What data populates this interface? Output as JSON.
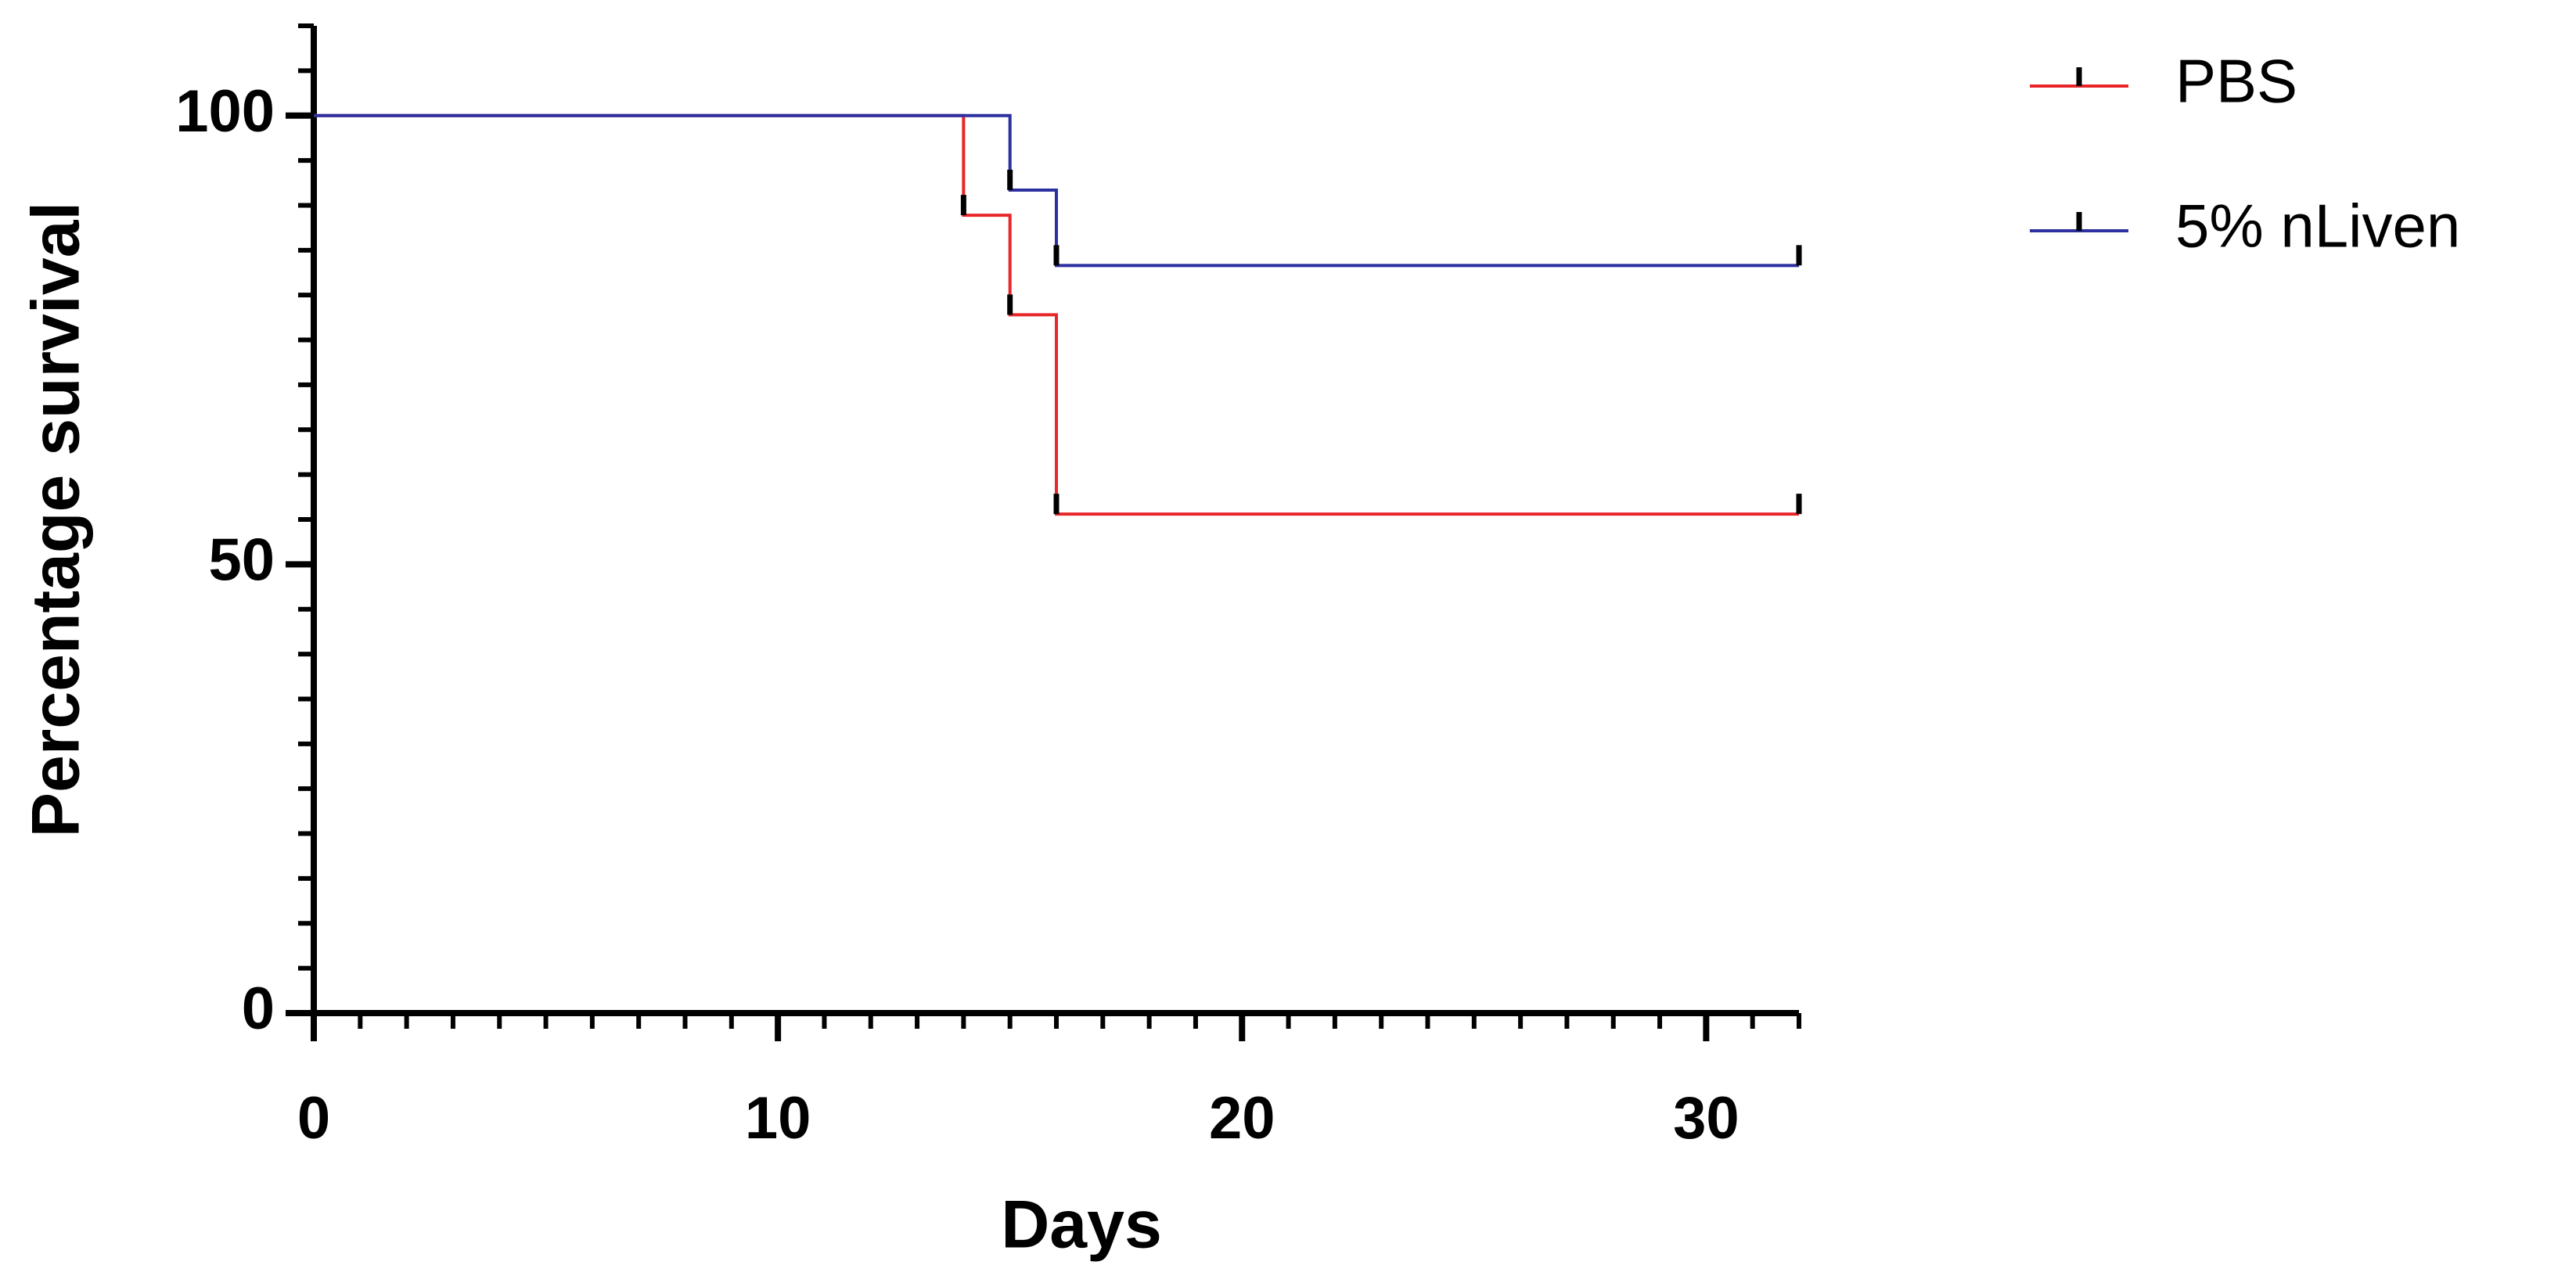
{
  "chart_data": {
    "type": "step",
    "x_label": "Days",
    "y_label": "Percentage survival",
    "series": [
      {
        "name": "PBS",
        "color": "#e8262a",
        "x": [
          0,
          14,
          15,
          16,
          32
        ],
        "values": [
          100,
          88.9,
          77.8,
          55.6,
          55.6
        ]
      },
      {
        "name": "5% nLiven",
        "color": "#2b2fa0",
        "x": [
          0,
          15,
          16,
          32
        ],
        "values": [
          100,
          91.7,
          83.3,
          83.3
        ]
      }
    ],
    "xlim": [
      0,
      32
    ],
    "xticks": [
      0,
      10,
      20,
      30
    ],
    "x_minor_step": 1,
    "ylim": [
      0,
      110
    ],
    "yticks": [
      0,
      50,
      100
    ],
    "y_minor_step": 5,
    "censor_marks": true,
    "legend": "top-right"
  }
}
